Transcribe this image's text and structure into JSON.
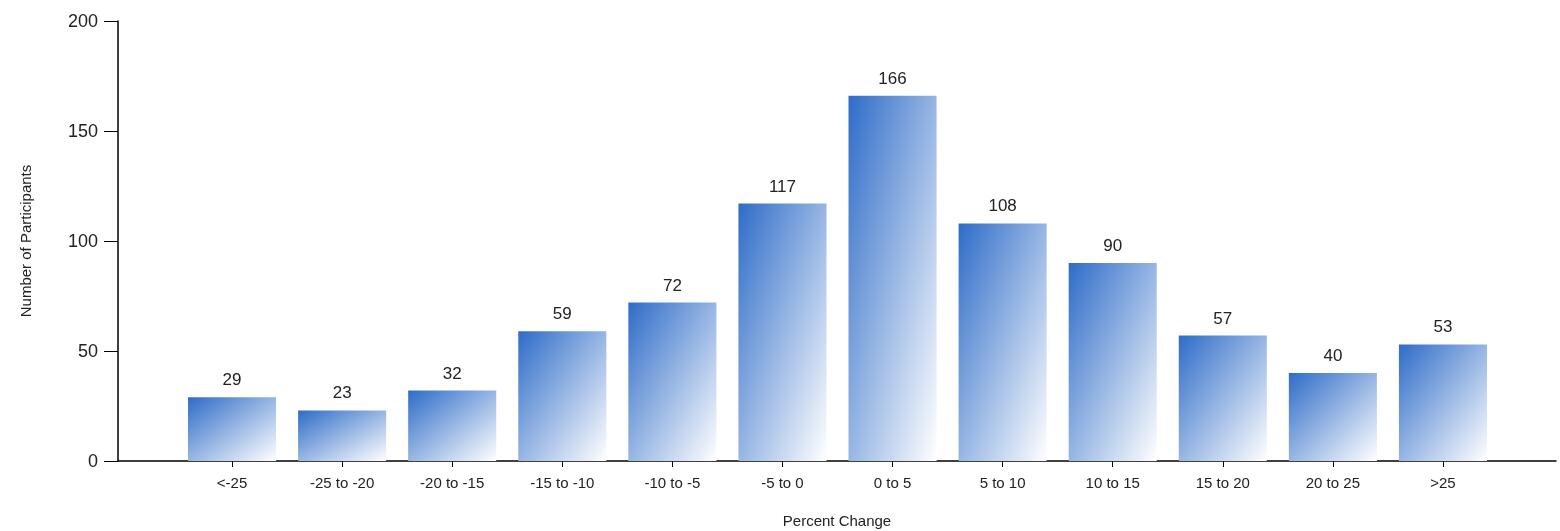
{
  "chart_data": {
    "type": "bar",
    "xlabel": "Percent Change",
    "ylabel": "Number of Participants",
    "categories": [
      "<-25",
      "-25 to -20",
      "-20 to -15",
      "-15 to -10",
      "-10 to -5",
      "-5 to 0",
      "0 to 5",
      "5 to 10",
      "10 to 15",
      "15 to 20",
      "20 to 25",
      ">25"
    ],
    "values": [
      29,
      23,
      32,
      59,
      72,
      117,
      166,
      108,
      90,
      57,
      40,
      53
    ],
    "color": "#2e6cc8",
    "ylim": [
      0,
      200
    ],
    "yticks": [
      0,
      50,
      100,
      150,
      200
    ],
    "data_labels": true
  }
}
